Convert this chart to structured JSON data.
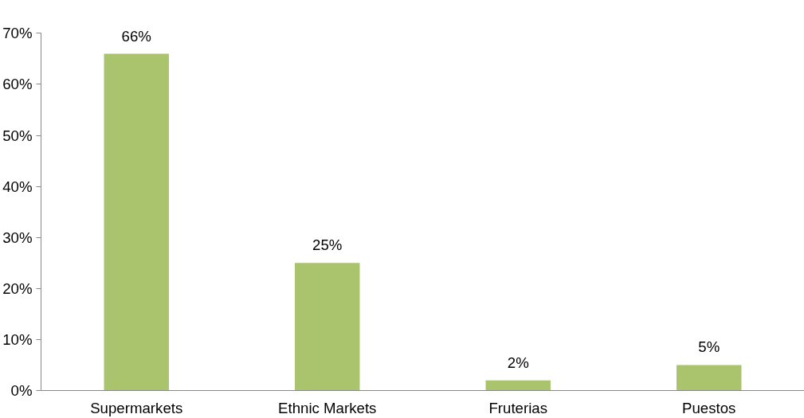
{
  "chart_data": {
    "type": "bar",
    "categories": [
      "Supermarkets",
      "Ethnic Markets",
      "Fruterias",
      "Puestos"
    ],
    "values": [
      66,
      25,
      2,
      5
    ],
    "value_labels": [
      "66%",
      "25%",
      "2%",
      "5%"
    ],
    "color": "#a9c46c",
    "ylim": [
      0,
      70
    ],
    "yticks": [
      {
        "value": 0,
        "label": "0%"
      },
      {
        "value": 10,
        "label": "10%"
      },
      {
        "value": 20,
        "label": "20%"
      },
      {
        "value": 30,
        "label": "30%"
      },
      {
        "value": 40,
        "label": "40%"
      },
      {
        "value": 50,
        "label": "50%"
      },
      {
        "value": 60,
        "label": "60%"
      },
      {
        "value": 70,
        "label": "70%"
      }
    ],
    "grid": false
  }
}
